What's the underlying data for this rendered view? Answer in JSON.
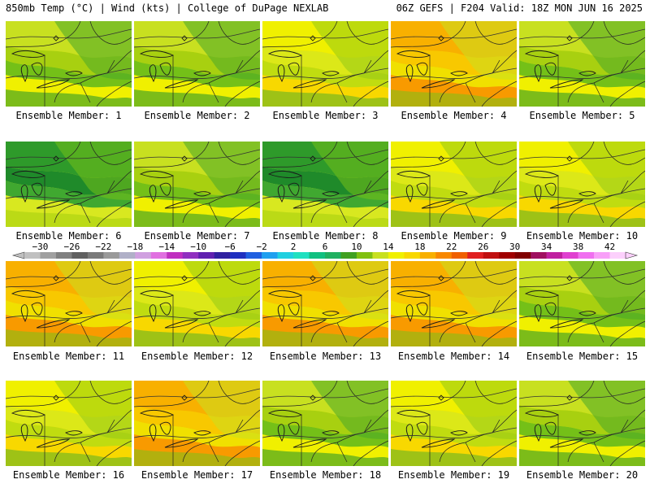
{
  "header": {
    "left": "850mb Temp (°C) | Wind (kts) | College of DuPage NEXLAB",
    "right": "06Z GEFS | F204 Valid: 18Z MON JUN 16 2025"
  },
  "colorbar": {
    "tick_labels": [
      "−30",
      "−26",
      "−22",
      "−18",
      "−14",
      "−10",
      "−6",
      "−2",
      "2",
      "6",
      "10",
      "14",
      "18",
      "22",
      "26",
      "30",
      "34",
      "38",
      "42"
    ],
    "colors": [
      "#c0c0c0",
      "#a0a0a0",
      "#808080",
      "#606060",
      "#7a7a7a",
      "#9a9a9a",
      "#b0b0c8",
      "#d0a0e0",
      "#e070e0",
      "#c030c0",
      "#9030c0",
      "#6020b0",
      "#3020a0",
      "#2030c0",
      "#2060e0",
      "#20a0f0",
      "#20d0e0",
      "#20e0c0",
      "#10c080",
      "#20b060",
      "#40a020",
      "#80c010",
      "#c8e020",
      "#f0f000",
      "#f8d800",
      "#f8b000",
      "#f88800",
      "#f06000",
      "#e02020",
      "#c01010",
      "#a00000",
      "#800000",
      "#a01060",
      "#c020a0",
      "#e040d0",
      "#f070f0",
      "#f8a0f8",
      "#fcd0fc"
    ]
  },
  "panels": [
    {
      "label": "Ensemble Member: 1",
      "scheme": 1
    },
    {
      "label": "Ensemble Member: 2",
      "scheme": 1
    },
    {
      "label": "Ensemble Member: 3",
      "scheme": 2
    },
    {
      "label": "Ensemble Member: 4",
      "scheme": 3
    },
    {
      "label": "Ensemble Member: 5",
      "scheme": 1
    },
    {
      "label": "Ensemble Member: 6",
      "scheme": 0
    },
    {
      "label": "Ensemble Member: 7",
      "scheme": 1
    },
    {
      "label": "Ensemble Member: 8",
      "scheme": 0
    },
    {
      "label": "Ensemble Member: 9",
      "scheme": 2
    },
    {
      "label": "Ensemble Member: 10",
      "scheme": 2
    },
    {
      "label": "Ensemble Member: 11",
      "scheme": 3
    },
    {
      "label": "Ensemble Member: 12",
      "scheme": 2
    },
    {
      "label": "Ensemble Member: 13",
      "scheme": 3
    },
    {
      "label": "Ensemble Member: 14",
      "scheme": 3
    },
    {
      "label": "Ensemble Member: 15",
      "scheme": 1
    },
    {
      "label": "Ensemble Member: 16",
      "scheme": 2
    },
    {
      "label": "Ensemble Member: 17",
      "scheme": 3
    },
    {
      "label": "Ensemble Member: 18",
      "scheme": 1
    },
    {
      "label": "Ensemble Member: 19",
      "scheme": 2
    },
    {
      "label": "Ensemble Member: 20",
      "scheme": 1
    }
  ]
}
